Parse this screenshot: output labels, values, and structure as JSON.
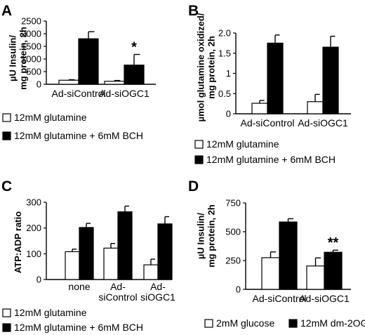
{
  "chart_data": [
    {
      "panel": "A",
      "type": "bar",
      "ylabel_lines": [
        "µU Insulin/",
        "mg protein, 2h"
      ],
      "ylim": [
        0,
        2500
      ],
      "yticks": [
        0,
        500,
        1000,
        1500,
        2000,
        2500
      ],
      "categories": [
        "Ad-siControl",
        "Ad-siOGC1"
      ],
      "series": [
        {
          "name": "12mM glutamine",
          "color": "#ffffff",
          "values": [
            160,
            120
          ],
          "errors": [
            20,
            30
          ]
        },
        {
          "name": "12mM glutamine + 6mM BCH",
          "color": "#000000",
          "values": [
            1800,
            760
          ],
          "errors": [
            280,
            420
          ]
        }
      ],
      "annotations": [
        {
          "text": "*",
          "category": 1,
          "series": 1
        }
      ]
    },
    {
      "panel": "B",
      "type": "bar",
      "ylabel_lines": [
        "µmol glutamine oxidized/",
        "mg protein, 2h"
      ],
      "ylim": [
        0,
        2.0
      ],
      "yticks": [
        "0",
        "0.5",
        "1",
        "1.5",
        "2.0"
      ],
      "yticks_values": [
        0,
        0.5,
        1,
        1.5,
        2.0
      ],
      "categories": [
        "Ad-siControl",
        "Ad-siOGC1"
      ],
      "series": [
        {
          "name": "12mM glutamine",
          "color": "#ffffff",
          "values": [
            0.26,
            0.3
          ],
          "errors": [
            0.07,
            0.18
          ]
        },
        {
          "name": "12mM glutamine + 6mM BCH",
          "color": "#000000",
          "values": [
            1.75,
            1.65
          ],
          "errors": [
            0.2,
            0.27
          ]
        }
      ]
    },
    {
      "panel": "C",
      "type": "bar",
      "ylabel_lines": [
        "ATP:ADP ratio"
      ],
      "ylim": [
        0,
        300
      ],
      "yticks": [
        0,
        100,
        200,
        300
      ],
      "categories": [
        [
          "none"
        ],
        [
          "Ad-",
          "siControl"
        ],
        [
          "Ad-",
          "siOGC1"
        ]
      ],
      "series": [
        {
          "name": "12mM glutamine",
          "color": "#ffffff",
          "values": [
            108,
            122,
            57
          ],
          "errors": [
            10,
            18,
            22
          ]
        },
        {
          "name": "12mM glutamine + 6mM BCH",
          "color": "#000000",
          "values": [
            202,
            263,
            216
          ],
          "errors": [
            16,
            22,
            28
          ]
        }
      ]
    },
    {
      "panel": "D",
      "type": "bar",
      "ylabel_lines": [
        "µU Insulin/",
        "mg protein, 2h"
      ],
      "ylim": [
        0,
        750
      ],
      "yticks": [
        0,
        250,
        500,
        750
      ],
      "categories": [
        "Ad-siControl",
        "Ad-siOGC1"
      ],
      "series": [
        {
          "name": "2mM glucose",
          "color": "#ffffff",
          "values": [
            275,
            203
          ],
          "errors": [
            50,
            70
          ]
        },
        {
          "name": "12mM dm-2OG",
          "color": "#000000",
          "values": [
            585,
            322
          ],
          "errors": [
            28,
            18
          ]
        }
      ],
      "annotations": [
        {
          "text": "**",
          "category": 1,
          "series": 1
        }
      ]
    }
  ]
}
